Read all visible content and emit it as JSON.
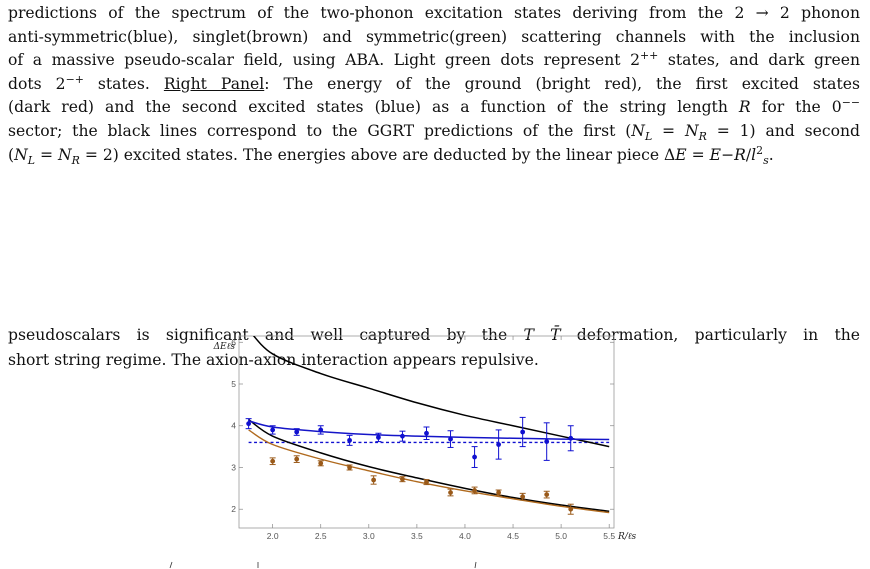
{
  "caption": {
    "l1": "predictions of the spectrum of the two-phonon excitation states deriving from the 2 → 2 phonon",
    "l2": "anti-symmetric(blue), singlet(brown) and symmetric(green) scattering channels with the inclusion",
    "l3a": "of a massive pseudo-scalar field, using ABA. Light green dots represent 2",
    "l3sup": "++",
    "l3b": " states, and dark green",
    "l4a": "dots 2",
    "l4sup": "−+",
    "l4b": " states. ",
    "l4panel": "Right Panel",
    "l4c": ": The energy of the ground (bright red), the first excited states",
    "l5a": "(dark red) and the second excited states (blue) as a function of the string length ",
    "l5R": "R",
    "l5b": " for the 0",
    "l5sup": "−−",
    "l6": "sector; the black lines correspond to the GGRT predictions of the first (Nₗ = Nᵣ = 1) and second",
    "l6a": "sector; the black lines correspond to the GGRT predictions of the first (",
    "l6N": "N",
    "l6sub1": "L",
    "l6eq": " = ",
    "l6sub2": "R",
    "l6b": " = 1) and second",
    "l7a": "(",
    "l7b": " = 2) excited states. The energies above are deducted by the linear piece Δ",
    "l7E": "E",
    "l7c": " = ",
    "l7d": "−",
    "l7e": "/",
    "l7l": "l",
    "l7sup": "2",
    "l7sub": "s",
    "l7end": "."
  },
  "body": {
    "l1a": "pseudoscalars is significant and well captured by the ",
    "l1TT": "T T̄",
    "l1b": " deformation, particularly in the",
    "l2": "short string regime. The axion-axion interaction appears repulsive."
  },
  "chart_data": {
    "type": "scatter",
    "ylabel": "ΔEℓs",
    "xlabel": "R/ℓs",
    "xlim": [
      1.65,
      5.55
    ],
    "ylim": [
      1.55,
      6.15
    ],
    "x_ticks": [
      "2.0",
      "2.5",
      "3.0",
      "3.5",
      "4.0",
      "4.5",
      "5.0",
      "5.5"
    ],
    "y_ticks": [
      "2",
      "3",
      "4",
      "5",
      "6"
    ],
    "series": [
      {
        "color": "#1010d0",
        "points": [
          {
            "x": 1.75,
            "y": 4.05,
            "err": 0.12
          },
          {
            "x": 2.0,
            "y": 3.9,
            "err": 0.1
          },
          {
            "x": 2.25,
            "y": 3.85,
            "err": 0.08
          },
          {
            "x": 2.5,
            "y": 3.9,
            "err": 0.1
          },
          {
            "x": 2.8,
            "y": 3.65,
            "err": 0.12
          },
          {
            "x": 3.1,
            "y": 3.72,
            "err": 0.1
          },
          {
            "x": 3.35,
            "y": 3.75,
            "err": 0.12
          },
          {
            "x": 3.6,
            "y": 3.82,
            "err": 0.15
          },
          {
            "x": 3.85,
            "y": 3.68,
            "err": 0.2
          },
          {
            "x": 4.1,
            "y": 3.25,
            "err": 0.25
          },
          {
            "x": 4.35,
            "y": 3.55,
            "err": 0.35
          },
          {
            "x": 4.6,
            "y": 3.85,
            "err": 0.35
          },
          {
            "x": 4.85,
            "y": 3.62,
            "err": 0.45
          },
          {
            "x": 5.1,
            "y": 3.7,
            "err": 0.3
          }
        ]
      },
      {
        "color": "#9a5a1a",
        "points": [
          {
            "x": 2.0,
            "y": 3.15,
            "err": 0.08
          },
          {
            "x": 2.25,
            "y": 3.2,
            "err": 0.08
          },
          {
            "x": 2.5,
            "y": 3.1,
            "err": 0.06
          },
          {
            "x": 2.8,
            "y": 3.0,
            "err": 0.06
          },
          {
            "x": 3.05,
            "y": 2.7,
            "err": 0.1
          },
          {
            "x": 3.35,
            "y": 2.72,
            "err": 0.06
          },
          {
            "x": 3.6,
            "y": 2.65,
            "err": 0.06
          },
          {
            "x": 3.85,
            "y": 2.4,
            "err": 0.08
          },
          {
            "x": 4.1,
            "y": 2.45,
            "err": 0.08
          },
          {
            "x": 4.35,
            "y": 2.4,
            "err": 0.06
          },
          {
            "x": 4.6,
            "y": 2.3,
            "err": 0.08
          },
          {
            "x": 4.85,
            "y": 2.35,
            "err": 0.08
          },
          {
            "x": 5.1,
            "y": 2.0,
            "err": 0.12
          }
        ]
      }
    ],
    "lines": {
      "blue_fit": [
        [
          1.75,
          4.12
        ],
        [
          2.0,
          3.97
        ],
        [
          2.5,
          3.86
        ],
        [
          3.0,
          3.79
        ],
        [
          3.5,
          3.75
        ],
        [
          4.0,
          3.72
        ],
        [
          4.5,
          3.7
        ],
        [
          5.0,
          3.68
        ],
        [
          5.5,
          3.67
        ]
      ],
      "blue_dotted": [
        [
          1.75,
          3.6
        ],
        [
          5.5,
          3.6
        ]
      ],
      "black_upper": [
        [
          1.75,
          6.3
        ],
        [
          2.0,
          5.72
        ],
        [
          2.5,
          5.25
        ],
        [
          3.0,
          4.9
        ],
        [
          3.5,
          4.55
        ],
        [
          4.0,
          4.25
        ],
        [
          4.5,
          4.0
        ],
        [
          5.0,
          3.75
        ],
        [
          5.5,
          3.5
        ]
      ],
      "black_lower": [
        [
          1.75,
          4.15
        ],
        [
          2.0,
          3.75
        ],
        [
          2.5,
          3.35
        ],
        [
          3.0,
          3.02
        ],
        [
          3.5,
          2.75
        ],
        [
          4.0,
          2.5
        ],
        [
          4.5,
          2.28
        ],
        [
          5.0,
          2.1
        ],
        [
          5.5,
          1.95
        ]
      ],
      "brown_fit": [
        [
          1.75,
          3.9
        ],
        [
          2.0,
          3.55
        ],
        [
          2.5,
          3.2
        ],
        [
          3.0,
          2.92
        ],
        [
          3.5,
          2.66
        ],
        [
          4.0,
          2.44
        ],
        [
          4.5,
          2.25
        ],
        [
          5.0,
          2.07
        ],
        [
          5.5,
          1.92
        ]
      ]
    }
  }
}
